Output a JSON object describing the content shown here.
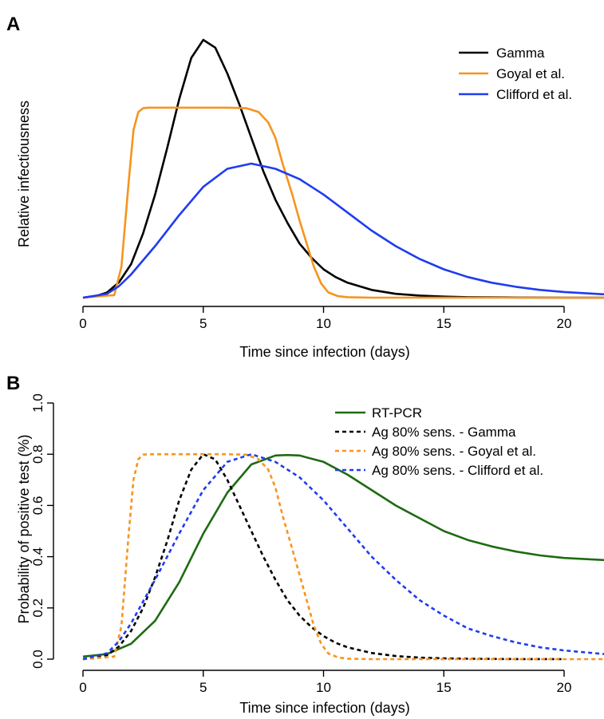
{
  "chart_data": [
    {
      "panel_label": "A",
      "type": "line",
      "xlabel": "Time since infection (days)",
      "ylabel": "Relative infectiousness",
      "xlim": [
        0,
        21.7
      ],
      "ylim": [
        0,
        1.0
      ],
      "x_ticks": [
        "0",
        "5",
        "10",
        "15",
        "20"
      ],
      "y_ticks": [],
      "legend_position": "top-right",
      "series": [
        {
          "name": "Gamma",
          "color": "#000000",
          "dashed": false,
          "x": [
            0,
            0.5,
            1,
            1.5,
            2,
            2.5,
            3,
            3.5,
            4,
            4.5,
            5,
            5.5,
            6,
            6.5,
            7,
            7.5,
            8,
            8.5,
            9,
            9.5,
            10,
            10.5,
            11,
            12,
            13,
            14,
            15,
            16,
            18,
            20,
            21.7
          ],
          "y": [
            0,
            0.005,
            0.02,
            0.06,
            0.13,
            0.25,
            0.4,
            0.58,
            0.77,
            0.93,
            1.0,
            0.97,
            0.87,
            0.75,
            0.62,
            0.49,
            0.38,
            0.29,
            0.21,
            0.155,
            0.11,
            0.08,
            0.058,
            0.03,
            0.015,
            0.008,
            0.004,
            0.002,
            0.0005,
            0.0001,
            0
          ]
        },
        {
          "name": "Goyal et al.",
          "color": "#F7941D",
          "dashed": false,
          "x": [
            0,
            1.3,
            1.6,
            1.9,
            2.1,
            2.3,
            2.5,
            2.7,
            3,
            4,
            5,
            6,
            6.8,
            7.3,
            7.7,
            8.0,
            8.3,
            8.7,
            9.0,
            9.3,
            9.6,
            9.9,
            10.2,
            10.6,
            11,
            12,
            15,
            20,
            21.7
          ],
          "y": [
            0,
            0.01,
            0.12,
            0.45,
            0.65,
            0.72,
            0.735,
            0.737,
            0.737,
            0.737,
            0.737,
            0.737,
            0.735,
            0.72,
            0.68,
            0.62,
            0.52,
            0.4,
            0.3,
            0.21,
            0.12,
            0.055,
            0.02,
            0.006,
            0.002,
            0,
            0,
            0,
            0
          ]
        },
        {
          "name": "Clifford et al.",
          "color": "#1F3CF0",
          "dashed": false,
          "x": [
            0,
            1,
            1.5,
            2,
            3,
            4,
            5,
            6,
            7,
            8,
            9,
            10,
            11,
            12,
            13,
            14,
            15,
            16,
            17,
            18,
            19,
            20,
            21.7
          ],
          "y": [
            0,
            0.015,
            0.045,
            0.09,
            0.2,
            0.32,
            0.43,
            0.5,
            0.52,
            0.5,
            0.46,
            0.4,
            0.33,
            0.26,
            0.2,
            0.15,
            0.11,
            0.08,
            0.058,
            0.042,
            0.03,
            0.022,
            0.013
          ]
        }
      ]
    },
    {
      "panel_label": "B",
      "type": "line",
      "xlabel": "Time since infection (days)",
      "ylabel": "Probability of positive test (%)",
      "xlim": [
        0,
        21.7
      ],
      "ylim": [
        0,
        1.0
      ],
      "x_ticks": [
        "0",
        "5",
        "10",
        "15",
        "20"
      ],
      "y_ticks": [
        "0.0",
        "0.2",
        "0.4",
        "0.6",
        "0.8",
        "1.0"
      ],
      "legend_position": "top-right",
      "series": [
        {
          "name": "RT-PCR",
          "color": "#1E6B12",
          "dashed": false,
          "x": [
            0,
            1,
            2,
            3,
            4,
            5,
            6,
            7,
            8,
            8.5,
            9,
            10,
            11,
            12,
            13,
            14,
            15,
            16,
            17,
            18,
            19,
            20,
            21.7
          ],
          "y": [
            0.01,
            0.02,
            0.06,
            0.15,
            0.3,
            0.49,
            0.65,
            0.76,
            0.795,
            0.797,
            0.795,
            0.77,
            0.72,
            0.66,
            0.6,
            0.55,
            0.5,
            0.465,
            0.44,
            0.42,
            0.405,
            0.395,
            0.387
          ]
        },
        {
          "name": "Ag 80% sens. - Gamma",
          "color": "#000000",
          "dashed": true,
          "x": [
            0,
            0.5,
            1,
            1.5,
            2,
            2.5,
            3,
            3.5,
            4,
            4.5,
            5,
            5.5,
            6,
            6.5,
            7,
            7.5,
            8,
            8.5,
            9,
            9.5,
            10,
            10.5,
            11,
            12,
            13,
            14,
            15,
            16,
            18,
            20
          ],
          "y": [
            0,
            0.004,
            0.016,
            0.05,
            0.11,
            0.2,
            0.32,
            0.46,
            0.62,
            0.74,
            0.8,
            0.78,
            0.7,
            0.6,
            0.5,
            0.4,
            0.31,
            0.23,
            0.17,
            0.125,
            0.09,
            0.064,
            0.046,
            0.024,
            0.012,
            0.006,
            0.003,
            0.0016,
            0.0004,
            0
          ]
        },
        {
          "name": "Ag 80% sens. - Goyal et al.",
          "color": "#F7941D",
          "dashed": true,
          "x": [
            0,
            1.3,
            1.6,
            1.9,
            2.1,
            2.3,
            2.5,
            2.7,
            3,
            4,
            5,
            6,
            6.8,
            7.3,
            7.7,
            8.0,
            8.3,
            8.7,
            9.0,
            9.3,
            9.6,
            9.9,
            10.2,
            10.6,
            11,
            12,
            15,
            20,
            21.7
          ],
          "y": [
            0,
            0.01,
            0.13,
            0.49,
            0.7,
            0.78,
            0.798,
            0.8,
            0.8,
            0.8,
            0.8,
            0.8,
            0.798,
            0.78,
            0.74,
            0.67,
            0.56,
            0.43,
            0.33,
            0.23,
            0.13,
            0.06,
            0.022,
            0.007,
            0.002,
            0,
            0,
            0,
            0
          ]
        },
        {
          "name": "Ag 80% sens. - Clifford et al.",
          "color": "#1F3CF0",
          "dashed": true,
          "x": [
            0,
            1,
            1.5,
            2,
            3,
            4,
            5,
            6,
            7,
            8,
            9,
            10,
            11,
            12,
            13,
            14,
            15,
            16,
            17,
            18,
            19,
            20,
            21.7
          ],
          "y": [
            0,
            0.023,
            0.07,
            0.14,
            0.31,
            0.49,
            0.66,
            0.77,
            0.8,
            0.77,
            0.71,
            0.62,
            0.51,
            0.4,
            0.31,
            0.23,
            0.17,
            0.12,
            0.09,
            0.065,
            0.046,
            0.034,
            0.02
          ]
        }
      ]
    }
  ]
}
